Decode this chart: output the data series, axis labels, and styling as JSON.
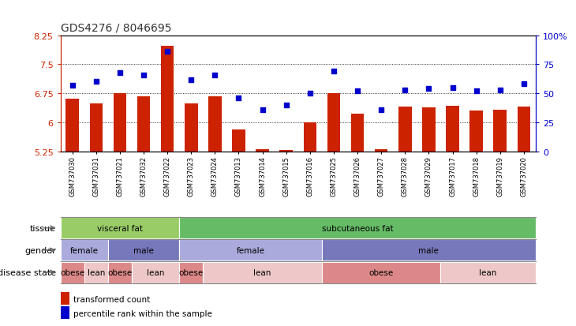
{
  "title": "GDS4276 / 8046695",
  "samples": [
    "GSM737030",
    "GSM737031",
    "GSM737021",
    "GSM737032",
    "GSM737022",
    "GSM737023",
    "GSM737024",
    "GSM737013",
    "GSM737014",
    "GSM737015",
    "GSM737016",
    "GSM737025",
    "GSM737026",
    "GSM737027",
    "GSM737028",
    "GSM737029",
    "GSM737017",
    "GSM737018",
    "GSM737019",
    "GSM737020"
  ],
  "bar_values": [
    6.62,
    6.48,
    6.75,
    6.68,
    7.98,
    6.48,
    6.68,
    5.82,
    5.3,
    5.28,
    6.0,
    6.75,
    6.22,
    5.3,
    6.4,
    6.38,
    6.42,
    6.3,
    6.32,
    6.4
  ],
  "dot_values": [
    57,
    60,
    68,
    66,
    86,
    62,
    66,
    46,
    36,
    40,
    50,
    69,
    52,
    36,
    53,
    54,
    55,
    52,
    53,
    58
  ],
  "ylim_left": [
    5.25,
    8.25
  ],
  "ylim_right": [
    0,
    100
  ],
  "yticks_left": [
    5.25,
    6.0,
    6.75,
    7.5,
    8.25
  ],
  "yticks_right": [
    0,
    25,
    50,
    75,
    100
  ],
  "ytick_labels_left": [
    "5.25",
    "6",
    "6.75",
    "7.5",
    "8.25"
  ],
  "ytick_labels_right": [
    "0",
    "25",
    "50",
    "75",
    "100%"
  ],
  "hgrid_vals": [
    6.0,
    6.75,
    7.5
  ],
  "bar_color": "#CC2200",
  "dot_color": "#0000CC",
  "title_color": "#333333",
  "left_axis_color": "#CC2200",
  "right_axis_color": "#0000CC",
  "tissue_labels": [
    {
      "text": "visceral fat",
      "start": 0,
      "end": 5,
      "color": "#99CC66"
    },
    {
      "text": "subcutaneous fat",
      "start": 5,
      "end": 20,
      "color": "#66BB66"
    }
  ],
  "gender_labels": [
    {
      "text": "female",
      "start": 0,
      "end": 2,
      "color": "#AAAADD"
    },
    {
      "text": "male",
      "start": 2,
      "end": 5,
      "color": "#7777BB"
    },
    {
      "text": "female",
      "start": 5,
      "end": 11,
      "color": "#AAAADD"
    },
    {
      "text": "male",
      "start": 11,
      "end": 20,
      "color": "#7777BB"
    }
  ],
  "disease_labels": [
    {
      "text": "obese",
      "start": 0,
      "end": 1,
      "color": "#DD8888"
    },
    {
      "text": "lean",
      "start": 1,
      "end": 2,
      "color": "#EEC8C8"
    },
    {
      "text": "obese",
      "start": 2,
      "end": 3,
      "color": "#DD8888"
    },
    {
      "text": "lean",
      "start": 3,
      "end": 5,
      "color": "#EEC8C8"
    },
    {
      "text": "obese",
      "start": 5,
      "end": 6,
      "color": "#DD8888"
    },
    {
      "text": "lean",
      "start": 6,
      "end": 11,
      "color": "#EEC8C8"
    },
    {
      "text": "obese",
      "start": 11,
      "end": 16,
      "color": "#DD8888"
    },
    {
      "text": "lean",
      "start": 16,
      "end": 20,
      "color": "#EEC8C8"
    }
  ],
  "row_labels": [
    "tissue",
    "gender",
    "disease state"
  ],
  "legend_items": [
    {
      "label": "transformed count",
      "color": "#CC2200"
    },
    {
      "label": "percentile rank within the sample",
      "color": "#0000CC"
    }
  ],
  "fig_width": 7.3,
  "fig_height": 4.14,
  "dpi": 100
}
